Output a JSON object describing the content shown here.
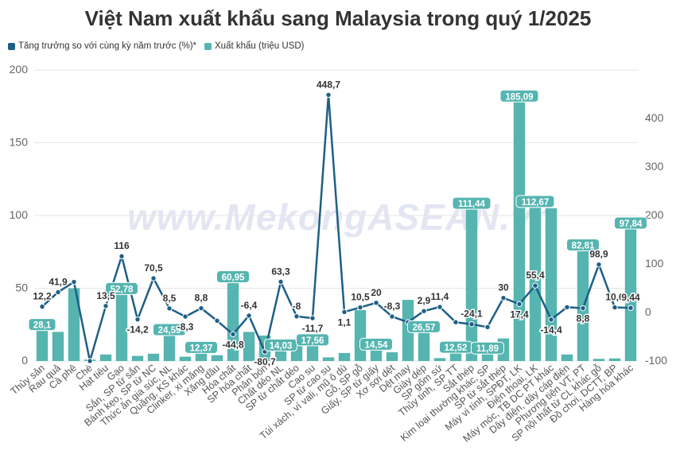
{
  "title": "Việt Nam xuất khẩu sang Malaysia trong quý 1/2025",
  "watermark": "www.MekongASEAN.vn",
  "legend": [
    {
      "label": "Tăng trưởng so với cùng kỳ năm trước (%)*",
      "color": "#1d5f86"
    },
    {
      "label": "Xuất khẩu (triệu USD)",
      "color": "#56b5b0"
    }
  ],
  "colors": {
    "bar": "#56b5b0",
    "line": "#1d5f86",
    "grid": "#e6e6e6",
    "axis_text": "#666666"
  },
  "chart_data": {
    "type": "bar",
    "categories": [
      "Thủy sản",
      "Rau quả",
      "Cà phê",
      "Chè",
      "Hạt tiêu",
      "Gạo",
      "Sắn, SP từ sắn",
      "Bánh kẹo, SP từ NC",
      "Thức ăn gia súc, NL",
      "Quặng, KS khác",
      "Clinker, xi măng",
      "Xăng dầu",
      "Hóa chất",
      "SP hóa chất",
      "Phân bón",
      "Chất dẻo NL",
      "SP từ chất dẻo",
      "Cao su",
      "SP từ cao su",
      "Túi xách, ví vali, mũ ô dù",
      "Gỗ, SP gỗ",
      "Giấy, SP từ giấy",
      "Xơ sợi dệt",
      "Dệt may",
      "Giày dép",
      "SP gốm sứ",
      "Thủy tinh, SP TT",
      "Sắt thép",
      "Kim loại thường khác, SP",
      "SP từ sắt thép",
      "Máy vi tính, SPĐT, LK",
      "Điện thoại, LK",
      "Máy móc, TB DC PT khác",
      "Dây điện, dây cáp điện",
      "Phương tiện VT, PT",
      "SP nội thất từ CL khác gỗ",
      "Đồ chơi, DCTT, BP",
      "Hàng hóa khác"
    ],
    "series": [
      {
        "name": "Xuất khẩu (triệu USD)",
        "type": "bar",
        "axis": "left",
        "values": [
          28.1,
          20,
          50,
          1,
          4.5,
          52.78,
          3.5,
          5,
          24.59,
          3,
          12.37,
          4,
          60.95,
          20,
          17.5,
          14.03,
          14.5,
          17.56,
          2.5,
          5.5,
          35,
          14.54,
          6,
          42,
          26.57,
          2,
          12.52,
          111.44,
          11.89,
          15.5,
          185.09,
          112.67,
          105,
          4.5,
          82.81,
          1.5,
          1.8,
          97.84
        ]
      },
      {
        "name": "Tăng trưởng so với cùng kỳ năm trước (%)*",
        "type": "line",
        "axis": "right",
        "values": [
          12.2,
          41.9,
          63,
          -100,
          13.5,
          116,
          -14.2,
          70.5,
          8.5,
          -8.3,
          8.8,
          -17,
          -44.8,
          -6.4,
          -80.7,
          63.3,
          -8,
          -11.7,
          448.7,
          1.1,
          10.5,
          20,
          -8.3,
          -20,
          2.9,
          11.4,
          -20,
          -24.1,
          -30,
          30,
          17.4,
          55.4,
          -14.4,
          11,
          8.8,
          98.9,
          10.6,
          9.44
        ]
      }
    ],
    "bar_labels": [
      {
        "index": 0,
        "text": "28,1"
      },
      {
        "index": 5,
        "text": "52,78"
      },
      {
        "index": 8,
        "text": "24,59"
      },
      {
        "index": 10,
        "text": "12,37"
      },
      {
        "index": 12,
        "text": "60,95"
      },
      {
        "index": 15,
        "text": "14,03"
      },
      {
        "index": 17,
        "text": "17,56"
      },
      {
        "index": 21,
        "text": "14,54"
      },
      {
        "index": 24,
        "text": "26,57"
      },
      {
        "index": 26,
        "text": "12,52"
      },
      {
        "index": 27,
        "text": "111,44"
      },
      {
        "index": 28,
        "text": "11,89"
      },
      {
        "index": 30,
        "text": "185,09"
      },
      {
        "index": 31,
        "text": "112,67"
      },
      {
        "index": 34,
        "text": "82,81"
      },
      {
        "index": 37,
        "text": "97,84"
      }
    ],
    "line_labels": [
      {
        "index": 0,
        "text": "12,2"
      },
      {
        "index": 1,
        "text": "41,9"
      },
      {
        "index": 4,
        "text": "13,5"
      },
      {
        "index": 5,
        "text": "116"
      },
      {
        "index": 6,
        "text": "-14,2"
      },
      {
        "index": 7,
        "text": "70,5"
      },
      {
        "index": 8,
        "text": "8,5"
      },
      {
        "index": 9,
        "text": "-8,3"
      },
      {
        "index": 10,
        "text": "8,8"
      },
      {
        "index": 12,
        "text": "-44,8"
      },
      {
        "index": 13,
        "text": "-6,4"
      },
      {
        "index": 14,
        "text": "-80,7"
      },
      {
        "index": 15,
        "text": "63,3"
      },
      {
        "index": 16,
        "text": "-8"
      },
      {
        "index": 17,
        "text": "-11,7"
      },
      {
        "index": 18,
        "text": "448,7"
      },
      {
        "index": 19,
        "text": "1,1"
      },
      {
        "index": 20,
        "text": "10,5"
      },
      {
        "index": 21,
        "text": "20"
      },
      {
        "index": 22,
        "text": "-8,3"
      },
      {
        "index": 24,
        "text": "2,9"
      },
      {
        "index": 25,
        "text": "11,4"
      },
      {
        "index": 27,
        "text": "-24,1"
      },
      {
        "index": 29,
        "text": "30"
      },
      {
        "index": 30,
        "text": "17,4"
      },
      {
        "index": 31,
        "text": "55,4"
      },
      {
        "index": 32,
        "text": "-14,4"
      },
      {
        "index": 34,
        "text": "8,8"
      },
      {
        "index": 35,
        "text": "98,9"
      },
      {
        "index": 36,
        "text": "10,6"
      },
      {
        "index": 37,
        "text": "9,44"
      }
    ],
    "y_left": {
      "ylim": [
        0,
        200
      ],
      "ticks": [
        "0",
        "50",
        "100",
        "150",
        "200"
      ]
    },
    "y_right": {
      "ylim": [
        -100,
        448.7
      ],
      "ticks": [
        "-100",
        "0",
        "100",
        "200",
        "300",
        "400"
      ]
    },
    "grid": true,
    "legend_position": "top-left"
  }
}
